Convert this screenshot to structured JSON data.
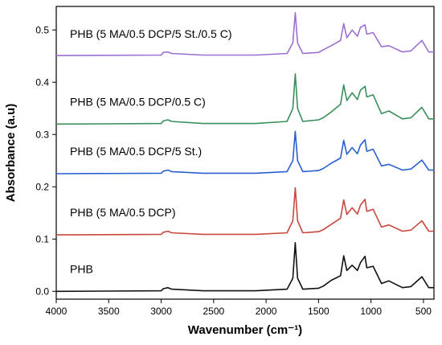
{
  "chart_data": {
    "type": "line",
    "title": "",
    "xlabel": "Wavenumber (cm⁻¹)",
    "ylabel": "Absorbance (a.u)",
    "xlim": [
      4000,
      400
    ],
    "ylim": [
      -0.015,
      0.545
    ],
    "x_reversed": true,
    "x_ticks": [
      "4000",
      "3500",
      "3000",
      "2500",
      "2000",
      "1500",
      "1000",
      "500"
    ],
    "y_ticks": [
      "0.0",
      "0.1",
      "0.2",
      "0.3",
      "0.4",
      "0.5"
    ],
    "grid": false,
    "series": [
      {
        "name": "PHB (5 MA/0.5 DCP/5 St./0.5 C)",
        "color": "#9b6fd4",
        "baseline": 0.45,
        "x": [
          4000,
          3000,
          2980,
          2935,
          2900,
          2600,
          2100,
          1800,
          1745,
          1722,
          1700,
          1650,
          1500,
          1455,
          1380,
          1290,
          1260,
          1230,
          1180,
          1130,
          1100,
          1057,
          1040,
          980,
          900,
          830,
          700,
          620,
          515,
          450,
          400
        ],
        "values": [
          0.451,
          0.452,
          0.457,
          0.458,
          0.455,
          0.452,
          0.452,
          0.455,
          0.475,
          0.533,
          0.475,
          0.455,
          0.457,
          0.462,
          0.47,
          0.48,
          0.512,
          0.485,
          0.5,
          0.488,
          0.505,
          0.51,
          0.492,
          0.495,
          0.468,
          0.47,
          0.458,
          0.46,
          0.48,
          0.458,
          0.458
        ]
      },
      {
        "name": "PHB (5 MA/0.5 DCP/0.5 C)",
        "color": "#3a8f5a",
        "baseline": 0.32,
        "x": [
          4000,
          3000,
          2980,
          2935,
          2900,
          2600,
          2100,
          1800,
          1745,
          1722,
          1700,
          1650,
          1500,
          1455,
          1380,
          1290,
          1260,
          1230,
          1180,
          1130,
          1100,
          1057,
          1040,
          980,
          900,
          830,
          700,
          620,
          515,
          450,
          400
        ],
        "values": [
          0.32,
          0.321,
          0.326,
          0.328,
          0.325,
          0.321,
          0.321,
          0.325,
          0.35,
          0.416,
          0.35,
          0.325,
          0.328,
          0.332,
          0.343,
          0.358,
          0.395,
          0.365,
          0.38,
          0.367,
          0.385,
          0.392,
          0.372,
          0.376,
          0.34,
          0.345,
          0.33,
          0.332,
          0.352,
          0.33,
          0.33
        ]
      },
      {
        "name": "PHB (5 MA/0.5 DCP/5 St.)",
        "color": "#2a5fd0",
        "baseline": 0.225,
        "x": [
          4000,
          3000,
          2980,
          2935,
          2900,
          2600,
          2100,
          1800,
          1745,
          1722,
          1700,
          1650,
          1500,
          1455,
          1380,
          1290,
          1260,
          1230,
          1180,
          1130,
          1100,
          1057,
          1040,
          980,
          900,
          830,
          700,
          620,
          515,
          450,
          400
        ],
        "values": [
          0.225,
          0.226,
          0.23,
          0.232,
          0.229,
          0.226,
          0.226,
          0.229,
          0.25,
          0.306,
          0.25,
          0.229,
          0.231,
          0.235,
          0.245,
          0.255,
          0.289,
          0.262,
          0.275,
          0.263,
          0.28,
          0.29,
          0.268,
          0.272,
          0.24,
          0.243,
          0.232,
          0.234,
          0.251,
          0.232,
          0.232
        ]
      },
      {
        "name": "PHB (5 MA/0.5 DCP)",
        "color": "#c9483e",
        "baseline": 0.108,
        "x": [
          4000,
          3000,
          2980,
          2935,
          2900,
          2600,
          2100,
          1800,
          1745,
          1722,
          1700,
          1650,
          1500,
          1455,
          1380,
          1290,
          1260,
          1230,
          1180,
          1130,
          1100,
          1057,
          1040,
          980,
          900,
          830,
          700,
          620,
          515,
          450,
          400
        ],
        "values": [
          0.108,
          0.109,
          0.113,
          0.115,
          0.112,
          0.109,
          0.109,
          0.112,
          0.135,
          0.198,
          0.135,
          0.112,
          0.114,
          0.118,
          0.128,
          0.14,
          0.175,
          0.147,
          0.16,
          0.148,
          0.165,
          0.176,
          0.153,
          0.157,
          0.123,
          0.127,
          0.115,
          0.117,
          0.135,
          0.115,
          0.115
        ]
      },
      {
        "name": "PHB",
        "color": "#111111",
        "baseline": 0.0,
        "x": [
          4000,
          3000,
          2980,
          2935,
          2900,
          2600,
          2100,
          1800,
          1745,
          1722,
          1700,
          1650,
          1500,
          1455,
          1380,
          1290,
          1260,
          1230,
          1180,
          1130,
          1100,
          1057,
          1040,
          980,
          900,
          830,
          700,
          620,
          515,
          450,
          400
        ],
        "values": [
          0.0,
          0.001,
          0.005,
          0.007,
          0.004,
          0.001,
          0.001,
          0.004,
          0.025,
          0.093,
          0.025,
          0.004,
          0.006,
          0.01,
          0.021,
          0.03,
          0.068,
          0.04,
          0.05,
          0.04,
          0.055,
          0.067,
          0.045,
          0.048,
          0.015,
          0.02,
          0.007,
          0.009,
          0.028,
          0.007,
          0.007
        ]
      }
    ]
  }
}
